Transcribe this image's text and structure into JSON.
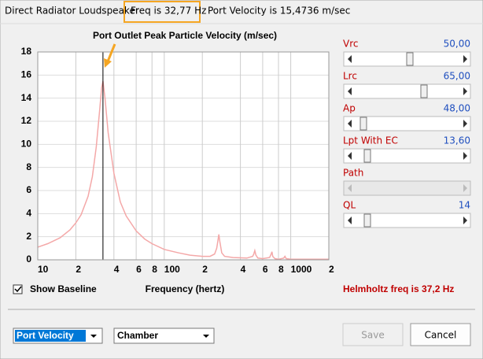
{
  "window": {
    "title": "Direct Radiator Loudspeaker",
    "freq": "Freq is 32,77 Hz",
    "velocity": "Port Velocity is 15,4736 m/sec"
  },
  "chart_data": {
    "type": "line",
    "title": "Port Outlet Peak Particle Velocity (m/sec)",
    "x_label": "Frequency (hertz)",
    "x": [
      10,
      12,
      15,
      18,
      20,
      22,
      25,
      27,
      29,
      31,
      32,
      32.77,
      34,
      36,
      40,
      45,
      50,
      60,
      70,
      80,
      100,
      130,
      160,
      200,
      230,
      250,
      260,
      265,
      270,
      275,
      285,
      300,
      350,
      450,
      500,
      510,
      520,
      530,
      550,
      600,
      680,
      700,
      710,
      720,
      750,
      800,
      880,
      900,
      920,
      1000,
      1200,
      1500,
      2000
    ],
    "values": [
      1.1,
      1.4,
      1.9,
      2.6,
      3.2,
      3.9,
      5.5,
      7.2,
      9.8,
      13.2,
      14.9,
      15.47,
      14.0,
      11,
      7.5,
      5,
      3.8,
      2.5,
      1.8,
      1.4,
      0.9,
      0.6,
      0.4,
      0.3,
      0.3,
      0.5,
      1.0,
      1.6,
      2.2,
      1.6,
      0.6,
      0.3,
      0.2,
      0.15,
      0.3,
      0.5,
      0.8,
      0.4,
      0.15,
      0.1,
      0.2,
      0.5,
      0.7,
      0.3,
      0.1,
      0.05,
      0.15,
      0.3,
      0.1,
      0.05,
      0.05,
      0.05,
      0.05
    ],
    "color": "#f4a8a8",
    "log_x": true,
    "grid": true,
    "cursor_x": 32.77,
    "xlim": [
      10,
      2000
    ],
    "ylim": [
      0,
      18
    ],
    "xticks": [
      {
        "value": 10,
        "label": "10"
      },
      {
        "value": 20,
        "label": "2"
      },
      {
        "value": 40,
        "label": "4"
      },
      {
        "value": 60,
        "label": "6"
      },
      {
        "value": 80,
        "label": "8"
      },
      {
        "value": 100,
        "label": "100"
      },
      {
        "value": 200,
        "label": "2"
      },
      {
        "value": 400,
        "label": "4"
      },
      {
        "value": 600,
        "label": "6"
      },
      {
        "value": 800,
        "label": "8"
      },
      {
        "value": 1000,
        "label": "1000"
      },
      {
        "value": 2000,
        "label": "2"
      }
    ],
    "yticks": [
      0,
      2,
      4,
      6,
      8,
      10,
      12,
      14,
      16,
      18
    ]
  },
  "sliders": [
    {
      "label": "Vrc",
      "value": "50,00"
    },
    {
      "label": "Lrc",
      "value": "65,00"
    },
    {
      "label": "Ap",
      "value": "48,00"
    },
    {
      "label": "Lpt  With EC",
      "value": "13,60"
    },
    {
      "label": "Path"
    },
    {
      "label": "QL",
      "value": "14"
    }
  ],
  "checkbox": "Show Baseline",
  "helmholtz": "Helmholtz freq is 37,2 Hz",
  "dropdowns": [
    "Port Velocity",
    "Chamber"
  ],
  "buttons": {
    "save": "Save",
    "cancel": "Cancel"
  }
}
